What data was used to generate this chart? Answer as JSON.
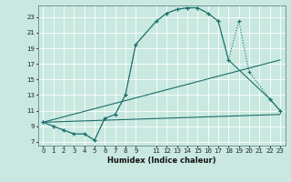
{
  "xlabel": "Humidex (Indice chaleur)",
  "bg_color": "#c8e8e0",
  "grid_color": "#ffffff",
  "line_color": "#1a6e6a",
  "xlim": [
    -0.5,
    23.5
  ],
  "ylim": [
    6.5,
    24.5
  ],
  "curve_dotted_x": [
    0,
    1,
    2,
    3,
    4,
    5,
    6,
    7,
    8,
    9,
    11,
    12,
    13,
    14,
    15,
    16,
    17,
    18,
    19,
    20,
    22,
    23
  ],
  "curve_dotted_y": [
    9.5,
    9.0,
    8.5,
    8.0,
    8.0,
    7.2,
    10.0,
    10.5,
    13.0,
    19.5,
    22.5,
    23.5,
    24.0,
    24.2,
    24.2,
    23.5,
    22.5,
    17.5,
    22.5,
    16.0,
    12.5,
    11.0
  ],
  "curve_solid_x": [
    0,
    1,
    2,
    3,
    4,
    5,
    6,
    7,
    8,
    9,
    11,
    12,
    13,
    14,
    15,
    16,
    17,
    18,
    22,
    23
  ],
  "curve_solid_y": [
    9.5,
    9.0,
    8.5,
    8.0,
    8.0,
    7.2,
    10.0,
    10.5,
    13.0,
    19.5,
    22.5,
    23.5,
    24.0,
    24.2,
    24.2,
    23.5,
    22.5,
    17.5,
    12.5,
    11.0
  ],
  "line1_x": [
    0,
    23
  ],
  "line1_y": [
    9.5,
    17.5
  ],
  "line2_x": [
    0,
    23
  ],
  "line2_y": [
    9.5,
    10.5
  ],
  "xtick_labels": [
    "0",
    "1",
    "2",
    "3",
    "4",
    "5",
    "6",
    "7",
    "8",
    "9",
    "11",
    "12",
    "13",
    "14",
    "15",
    "16",
    "17",
    "18",
    "19",
    "20",
    "21",
    "22",
    "23"
  ],
  "xtick_pos": [
    0,
    1,
    2,
    3,
    4,
    5,
    6,
    7,
    8,
    9,
    11,
    12,
    13,
    14,
    15,
    16,
    17,
    18,
    19,
    20,
    21,
    22,
    23
  ],
  "ytick_labels": [
    "7",
    "9",
    "11",
    "13",
    "15",
    "17",
    "19",
    "21",
    "23"
  ],
  "ytick_pos": [
    7,
    9,
    11,
    13,
    15,
    17,
    19,
    21,
    23
  ]
}
